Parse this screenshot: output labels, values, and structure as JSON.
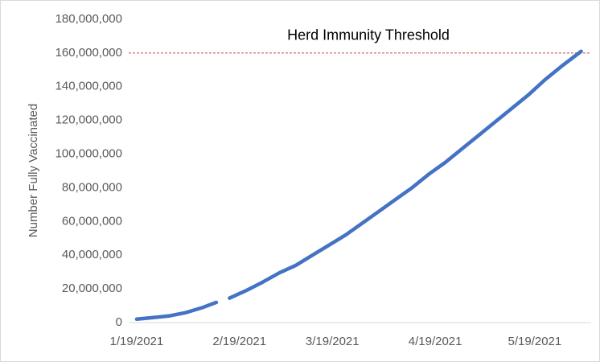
{
  "chart_data": {
    "type": "line",
    "y_label": "Number Fully Vaccinated",
    "x": [
      "1/19/2021",
      "1/24/2021",
      "1/29/2021",
      "2/3/2021",
      "2/8/2021",
      "2/12/2021",
      "2/14/2021",
      "2/16/2021",
      "2/21/2021",
      "2/26/2021",
      "3/3/2021",
      "3/8/2021",
      "3/13/2021",
      "3/18/2021",
      "3/23/2021",
      "3/28/2021",
      "4/2/2021",
      "4/7/2021",
      "4/12/2021",
      "4/17/2021",
      "4/22/2021",
      "4/27/2021",
      "5/2/2021",
      "5/7/2021",
      "5/12/2021",
      "5/17/2021",
      "5/22/2021",
      "5/27/2021",
      "6/2/2021"
    ],
    "values": [
      2000000,
      3000000,
      4000000,
      6000000,
      9000000,
      12000000,
      null,
      14500000,
      19000000,
      24000000,
      29500000,
      34000000,
      40000000,
      46000000,
      52000000,
      59000000,
      66000000,
      73000000,
      80000000,
      88000000,
      95000000,
      103000000,
      111000000,
      119000000,
      127000000,
      135000000,
      144000000,
      152000000,
      161000000
    ],
    "color": "#4472c4",
    "xlim": [
      "1/12/2021",
      "6/5/2021"
    ],
    "xticks": [
      "1/19/2021",
      "2/19/2021",
      "3/19/2021",
      "4/19/2021",
      "5/19/2021"
    ],
    "ylim": [
      0,
      180000000
    ],
    "yticks": [
      0,
      {
        "value": 20000000,
        "label": "20,000,000"
      },
      {
        "value": 40000000,
        "label": "40,000,000"
      },
      {
        "value": 60000000,
        "label": "60,000,000"
      },
      {
        "value": 80000000,
        "label": "80,000,000"
      },
      {
        "value": 100000000,
        "label": "100,000,000"
      },
      {
        "value": 120000000,
        "label": "120,000,000"
      },
      {
        "value": 140000000,
        "label": "140,000,000"
      },
      {
        "value": 160000000,
        "label": "160,000,000"
      },
      {
        "value": 180000000,
        "label": "180,000,000"
      }
    ],
    "grid": false,
    "threshold": {
      "value": 160000000,
      "label": "Herd Immunity Threshold",
      "color": "#c0504d"
    }
  }
}
